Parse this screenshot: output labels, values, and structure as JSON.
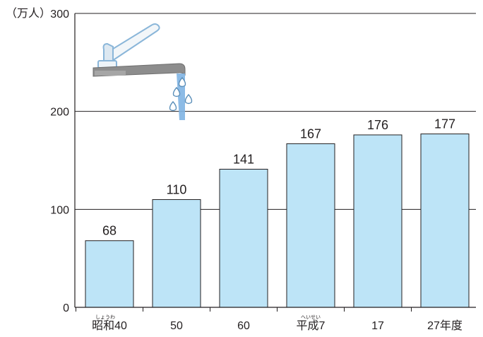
{
  "chart_data": {
    "type": "bar",
    "ylabel": "（万人）",
    "ylim": [
      0,
      300
    ],
    "yticks": [
      "0",
      "100",
      "200",
      "300"
    ],
    "categories": [
      "昭和40",
      "50",
      "60",
      "平成7",
      "17",
      "27年度"
    ],
    "category_ruby": [
      "しょうわ",
      "",
      "",
      "へいせい",
      "",
      ""
    ],
    "values": [
      68,
      110,
      141,
      167,
      176,
      177
    ],
    "data_labels": [
      "68",
      "110",
      "141",
      "167",
      "176",
      "177"
    ],
    "grid": true,
    "colors": {
      "bar_fill": "#bde4f7",
      "bar_stroke": "#231f20",
      "axis": "#231f20",
      "grid": "#231f20"
    },
    "decoration": {
      "icon": "water-faucet-icon"
    }
  }
}
